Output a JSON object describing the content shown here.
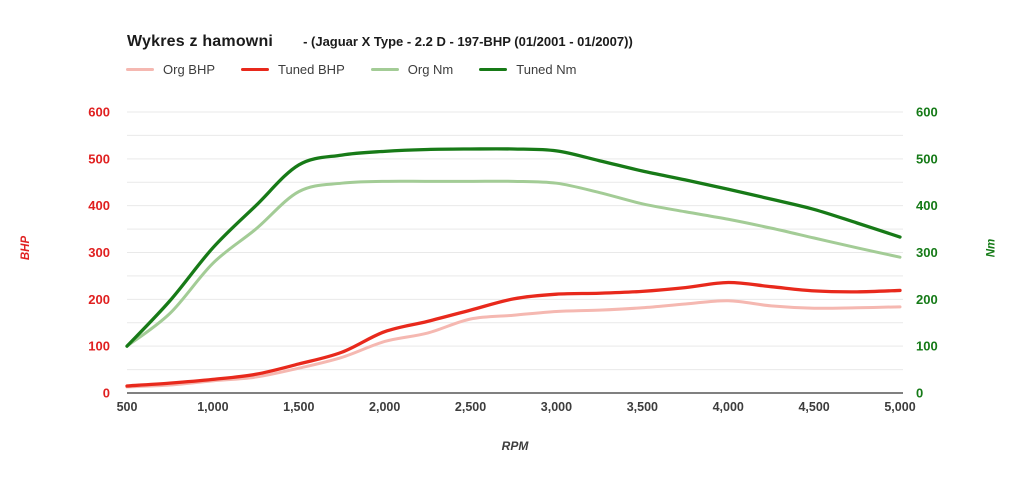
{
  "header": {
    "title": "Wykres z hamowni",
    "subtitle": "- (Jaguar X Type - 2.2 D - 197-BHP (01/2001 - 01/2007))"
  },
  "legend": [
    {
      "label": "Org BHP",
      "color": "#f5b8b1"
    },
    {
      "label": "Tuned BHP",
      "color": "#e8291c"
    },
    {
      "label": "Org Nm",
      "color": "#a3cc96"
    },
    {
      "label": "Tuned Nm",
      "color": "#177a17"
    }
  ],
  "axis_titles": {
    "left": "BHP",
    "right": "Nm",
    "bottom": "RPM"
  },
  "chart_data": {
    "type": "line",
    "title": "Wykres z hamowni - (Jaguar X Type - 2.2 D - 197-BHP (01/2001 - 01/2007))",
    "xlabel": "RPM",
    "ylabel_left": "BHP",
    "ylabel_right": "Nm",
    "xlim": [
      500,
      5000
    ],
    "ylim": [
      0,
      600
    ],
    "grid_step": 50,
    "grid_on": true,
    "legend_position": "top",
    "x": [
      500,
      750,
      1000,
      1250,
      1500,
      1750,
      2000,
      2250,
      2500,
      2750,
      3000,
      3250,
      3500,
      3750,
      4000,
      4250,
      4500,
      4750,
      5000
    ],
    "series": [
      {
        "name": "Org BHP",
        "axis": "left",
        "color": "#f5b8b1",
        "width": 3,
        "values": [
          13,
          17,
          26,
          34,
          53,
          76,
          110,
          128,
          158,
          166,
          174,
          177,
          182,
          190,
          197,
          186,
          181,
          182,
          184
        ]
      },
      {
        "name": "Tuned BHP",
        "axis": "left",
        "color": "#e8291c",
        "width": 3.3,
        "values": [
          15,
          21,
          29,
          40,
          62,
          87,
          131,
          153,
          177,
          201,
          211,
          213,
          217,
          225,
          236,
          227,
          218,
          216,
          219
        ]
      },
      {
        "name": "Org Nm",
        "axis": "right",
        "color": "#a3cc96",
        "width": 3,
        "values": [
          100,
          170,
          277,
          350,
          430,
          448,
          452,
          452,
          452,
          452,
          448,
          428,
          404,
          387,
          371,
          352,
          331,
          310,
          290
        ]
      },
      {
        "name": "Tuned Nm",
        "axis": "right",
        "color": "#177a17",
        "width": 3.3,
        "values": [
          100,
          197,
          310,
          400,
          487,
          508,
          516,
          520,
          521,
          521,
          517,
          496,
          474,
          455,
          435,
          414,
          392,
          363,
          333
        ]
      }
    ],
    "x_tick_values": [
      500,
      1000,
      1500,
      2000,
      2500,
      3000,
      3500,
      4000,
      4500,
      5000
    ],
    "x_tick_labels": [
      "500",
      "1,000",
      "1,500",
      "2,000",
      "2,500",
      "3,000",
      "3,500",
      "4,000",
      "4,500",
      "5,000"
    ],
    "y_ticks": [
      0,
      100,
      200,
      300,
      400,
      500,
      600
    ],
    "axis_colors": {
      "left": "#e02020",
      "right": "#157a17",
      "x": "#3d3d3d"
    },
    "gridline_color": "#e9e9e9",
    "baseline_color": "#808080"
  }
}
